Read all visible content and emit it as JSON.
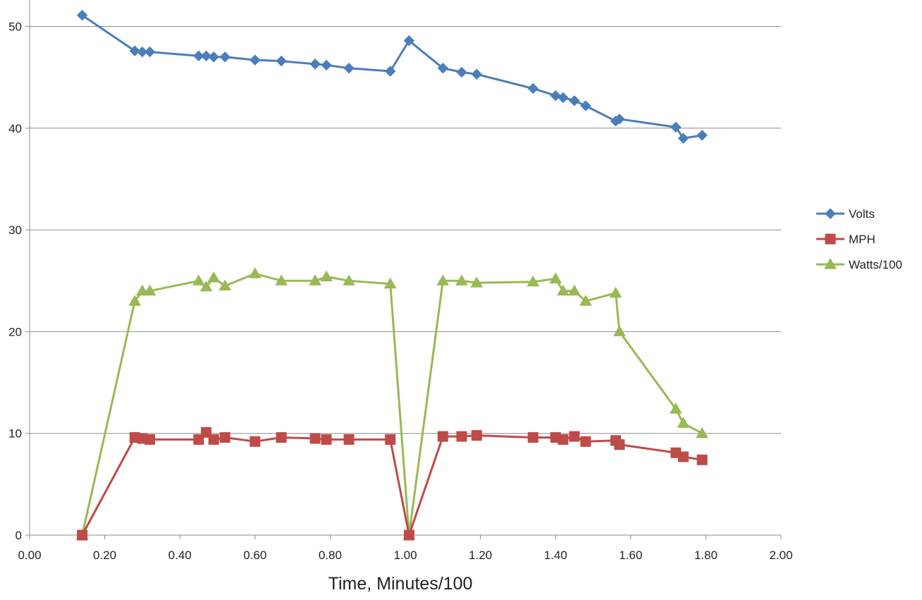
{
  "chart_data": {
    "type": "line",
    "title": "",
    "xlabel": "Time, Minutes/100",
    "ylabel": "",
    "xlim": [
      0,
      2
    ],
    "ylim": [
      0,
      52
    ],
    "x_ticks": [
      0,
      0.2,
      0.4,
      0.6,
      0.8,
      1.0,
      1.2,
      1.4,
      1.6,
      1.8,
      2.0
    ],
    "x_tick_labels": [
      "0.00",
      "0.20",
      "0.40",
      "0.60",
      "0.80",
      "1.00",
      "1.20",
      "1.40",
      "1.60",
      "1.80",
      "2.00"
    ],
    "y_ticks": [
      0,
      10,
      20,
      30,
      40,
      50
    ],
    "y_tick_labels": [
      "0",
      "10",
      "20",
      "30",
      "40",
      "50"
    ],
    "grid": "horizontal",
    "legend_position": "right",
    "series": [
      {
        "name": "Volts",
        "color": "#4a7ebb",
        "marker": "diamond",
        "x": [
          0.14,
          0.28,
          0.3,
          0.32,
          0.45,
          0.47,
          0.49,
          0.52,
          0.6,
          0.67,
          0.76,
          0.79,
          0.85,
          0.96,
          1.01,
          1.1,
          1.15,
          1.19,
          1.34,
          1.4,
          1.42,
          1.45,
          1.48,
          1.56,
          1.57,
          1.72,
          1.74,
          1.79
        ],
        "y": [
          51.1,
          47.6,
          47.5,
          47.5,
          47.1,
          47.1,
          47.0,
          47.0,
          46.7,
          46.6,
          46.3,
          46.2,
          45.9,
          45.6,
          48.6,
          45.9,
          45.5,
          45.3,
          43.9,
          43.2,
          43.0,
          42.7,
          42.2,
          40.7,
          40.9,
          40.1,
          39.0,
          39.3
        ]
      },
      {
        "name": "MPH",
        "color": "#be4b48",
        "marker": "square",
        "x": [
          0.14,
          0.28,
          0.3,
          0.32,
          0.45,
          0.47,
          0.49,
          0.52,
          0.6,
          0.67,
          0.76,
          0.79,
          0.85,
          0.96,
          1.01,
          1.1,
          1.15,
          1.19,
          1.34,
          1.4,
          1.42,
          1.45,
          1.48,
          1.56,
          1.57,
          1.72,
          1.74,
          1.79
        ],
        "y": [
          0.0,
          9.6,
          9.5,
          9.4,
          9.4,
          10.1,
          9.4,
          9.6,
          9.2,
          9.6,
          9.5,
          9.4,
          9.4,
          9.4,
          0.0,
          9.7,
          9.7,
          9.8,
          9.6,
          9.6,
          9.4,
          9.7,
          9.2,
          9.3,
          8.9,
          8.1,
          7.7,
          7.4
        ]
      },
      {
        "name": "Watts/100",
        "color": "#98b954",
        "marker": "triangle",
        "x": [
          0.14,
          0.28,
          0.3,
          0.32,
          0.45,
          0.47,
          0.49,
          0.52,
          0.6,
          0.67,
          0.76,
          0.79,
          0.85,
          0.96,
          1.01,
          1.1,
          1.15,
          1.19,
          1.34,
          1.4,
          1.42,
          1.45,
          1.48,
          1.56,
          1.57,
          1.72,
          1.74,
          1.79
        ],
        "y": [
          0.0,
          23.0,
          24.0,
          24.0,
          25.0,
          24.4,
          25.3,
          24.5,
          25.7,
          25.0,
          25.0,
          25.4,
          25.0,
          24.7,
          0.0,
          25.0,
          25.0,
          24.8,
          24.9,
          25.2,
          24.0,
          24.0,
          23.0,
          23.8,
          20.0,
          12.4,
          11.0,
          10.0
        ]
      }
    ]
  }
}
